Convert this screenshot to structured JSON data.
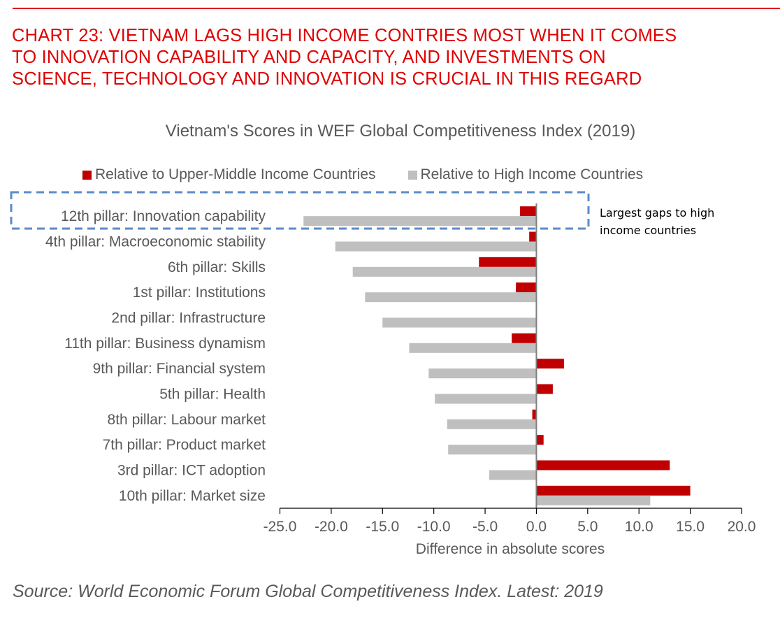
{
  "headline": [
    "CHART 23: VIETNAM LAGS HIGH INCOME CONTRIES MOST WHEN IT COMES",
    "TO INNOVATION CAPABILITY AND CAPACITY, AND INVESTMENTS ON",
    "SCIENCE, TECHNOLOGY AND INNOVATION IS CRUCIAL IN THIS REGARD"
  ],
  "annotation": [
    "Largest gaps to high",
    "income countries"
  ],
  "source": "Source: World Economic Forum Global Competitiveness Index. Latest: 2019",
  "colors": {
    "upper_middle": "#c00000",
    "high": "#bfbfbf",
    "headline": "#e00000",
    "highlight_box": "#5b8bc8"
  },
  "chart_data": {
    "type": "bar",
    "orientation": "horizontal",
    "title": "Vietnam's Scores in WEF Global Competitiveness Index (2019)",
    "xlabel": "Difference in absolute scores",
    "ylabel": "",
    "xlim": [
      -25,
      20
    ],
    "xticks": [
      "-25.0",
      "-20.0",
      "-15.0",
      "-10.0",
      "-5.0",
      "0.0",
      "5.0",
      "10.0",
      "15.0",
      "20.0"
    ],
    "xtick_values": [
      -25,
      -20,
      -15,
      -10,
      -5,
      0,
      5,
      10,
      15,
      20
    ],
    "legend_position": "top",
    "categories": [
      "12th pillar: Innovation capability",
      "4th pillar: Macroeconomic stability",
      "6th pillar: Skills",
      "1st pillar: Institutions",
      "2nd pillar: Infrastructure",
      "11th pillar: Business dynamism",
      "9th pillar: Financial system",
      "5th pillar: Health",
      "8th pillar: Labour market",
      "7th pillar: Product market",
      "3rd pillar: ICT adoption",
      "10th pillar: Market size"
    ],
    "series": [
      {
        "name": "Relative to Upper-Middle Income Countries",
        "values": [
          -1.6,
          -0.7,
          -5.6,
          -2.0,
          0.0,
          -2.4,
          2.7,
          1.6,
          -0.4,
          0.7,
          13.0,
          15.0
        ]
      },
      {
        "name": "Relative to High Income Countries",
        "values": [
          -22.7,
          -19.6,
          -17.9,
          -16.7,
          -15.0,
          -12.4,
          -10.5,
          -9.9,
          -8.7,
          -8.6,
          -4.6,
          11.1
        ]
      }
    ],
    "highlighted_category": "12th pillar: Innovation capability"
  }
}
